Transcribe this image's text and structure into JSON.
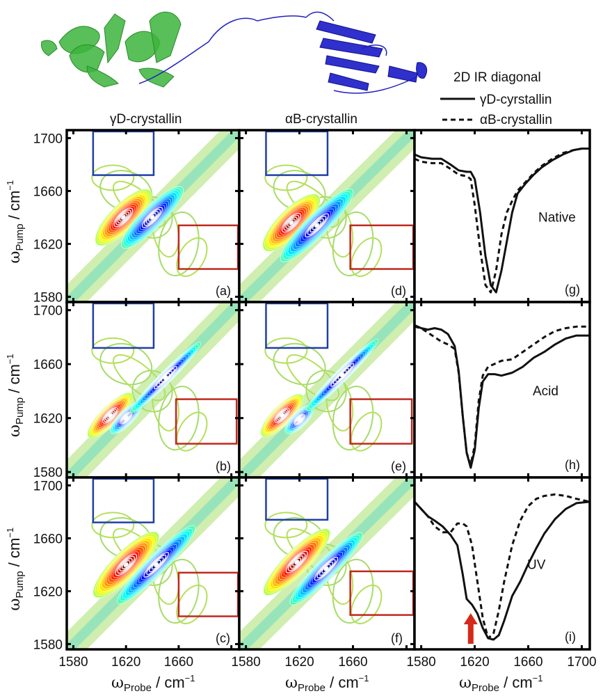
{
  "figure": {
    "proteins": [
      {
        "name": "γD-crystallin",
        "render_color": "#3cb43c"
      },
      {
        "name": "αB-crystallin",
        "render_color": "#1a1ac8"
      }
    ],
    "column_titles": [
      "γD-crystallin",
      "αB-crystallin"
    ],
    "legend": {
      "title": "2D IR diagonal",
      "entries": [
        {
          "label": "γD-cyrstallin",
          "style": "solid"
        },
        {
          "label": "αB-crystallin",
          "style": "dashed"
        }
      ]
    },
    "box_colors": {
      "blue": "#1f3fa6",
      "red": "#c0281e"
    },
    "arrow_color": "#d42a1a"
  },
  "chart_data": [
    {
      "type": "heatmap",
      "panel": "(a)",
      "protein": "γD-crystallin",
      "condition": "Native",
      "xlabel": "ωProbe / cm−1",
      "ylabel": "ωPump / cm−1",
      "xlim": [
        1575,
        1706
      ],
      "ylim": [
        1576,
        1706
      ],
      "xticks": [
        1580,
        1620,
        1660,
        1700
      ],
      "yticks": [
        1580,
        1620,
        1660,
        1700
      ],
      "peaks": [
        {
          "sign": "positive",
          "x": 1618,
          "y": 1640,
          "w": 10,
          "l": 30
        },
        {
          "sign": "negative",
          "x": 1640,
          "y": 1640,
          "w": 8,
          "l": 34
        }
      ],
      "boxes": [
        {
          "color": "blue",
          "x": [
            1595,
            1641
          ],
          "y": [
            1672,
            1705
          ]
        },
        {
          "color": "red",
          "x": [
            1660,
            1705
          ],
          "y": [
            1601,
            1634
          ]
        }
      ]
    },
    {
      "type": "heatmap",
      "panel": "(b)",
      "protein": "γD-crystallin",
      "condition": "Acid",
      "xlabel": "",
      "ylabel": "ωPump / cm−1",
      "xlim": [
        1575,
        1706
      ],
      "ylim": [
        1576,
        1706
      ],
      "xticks": [
        1580,
        1620,
        1660,
        1700
      ],
      "yticks": [
        1580,
        1620,
        1660,
        1700
      ],
      "peaks": [
        {
          "sign": "positive",
          "x": 1608,
          "y": 1622,
          "w": 7,
          "l": 24
        },
        {
          "sign": "negative",
          "x": 1620,
          "y": 1620,
          "w": 5,
          "l": 16
        },
        {
          "sign": "negative",
          "x": 1650,
          "y": 1650,
          "w": 4,
          "l": 40
        }
      ],
      "boxes": [
        {
          "color": "blue",
          "x": [
            1595,
            1641
          ],
          "y": [
            1672,
            1705
          ]
        },
        {
          "color": "red",
          "x": [
            1658,
            1704
          ],
          "y": [
            1601,
            1634
          ]
        }
      ]
    },
    {
      "type": "heatmap",
      "panel": "(c)",
      "protein": "γD-crystallin",
      "condition": "UV",
      "xlabel": "ωProbe / cm−1",
      "ylabel": "ωPump / cm−1",
      "xlim": [
        1575,
        1706
      ],
      "ylim": [
        1576,
        1706
      ],
      "xticks": [
        1580,
        1620,
        1660,
        1700
      ],
      "yticks": [
        1580,
        1620,
        1660,
        1700
      ],
      "peaks": [
        {
          "sign": "positive",
          "x": 1620,
          "y": 1640,
          "w": 10,
          "l": 36
        },
        {
          "sign": "negative",
          "x": 1643,
          "y": 1640,
          "w": 7,
          "l": 44
        }
      ],
      "boxes": [
        {
          "color": "blue",
          "x": [
            1595,
            1641
          ],
          "y": [
            1672,
            1705
          ]
        },
        {
          "color": "red",
          "x": [
            1660,
            1705
          ],
          "y": [
            1601,
            1634
          ]
        }
      ]
    },
    {
      "type": "heatmap",
      "panel": "(d)",
      "protein": "αB-crystallin",
      "condition": "Native",
      "xlabel": "",
      "ylabel": "",
      "xlim": [
        1575,
        1706
      ],
      "ylim": [
        1576,
        1706
      ],
      "xticks": [
        1580,
        1620,
        1660,
        1700
      ],
      "yticks": [
        1580,
        1620,
        1660,
        1700
      ],
      "peaks": [
        {
          "sign": "positive",
          "x": 1614,
          "y": 1636,
          "w": 10,
          "l": 30
        },
        {
          "sign": "negative",
          "x": 1633,
          "y": 1634,
          "w": 8,
          "l": 40
        }
      ],
      "boxes": [
        {
          "color": "blue",
          "x": [
            1595,
            1641
          ],
          "y": [
            1672,
            1705
          ]
        },
        {
          "color": "red",
          "x": [
            1658,
            1705
          ],
          "y": [
            1601,
            1634
          ]
        }
      ]
    },
    {
      "type": "heatmap",
      "panel": "(e)",
      "protein": "αB-crystallin",
      "condition": "Acid",
      "xlabel": "",
      "ylabel": "",
      "xlim": [
        1575,
        1706
      ],
      "ylim": [
        1576,
        1706
      ],
      "xticks": [
        1580,
        1620,
        1660,
        1700
      ],
      "yticks": [
        1580,
        1620,
        1660,
        1700
      ],
      "peaks": [
        {
          "sign": "positive",
          "x": 1607,
          "y": 1622,
          "w": 7,
          "l": 22
        },
        {
          "sign": "negative",
          "x": 1620,
          "y": 1619,
          "w": 5,
          "l": 14
        },
        {
          "sign": "negative",
          "x": 1652,
          "y": 1652,
          "w": 4,
          "l": 40
        }
      ],
      "boxes": [
        {
          "color": "blue",
          "x": [
            1595,
            1641
          ],
          "y": [
            1672,
            1705
          ]
        },
        {
          "color": "red",
          "x": [
            1658,
            1704
          ],
          "y": [
            1601,
            1634
          ]
        }
      ]
    },
    {
      "type": "heatmap",
      "panel": "(f)",
      "protein": "αB-crystallin",
      "condition": "UV",
      "xlabel": "ωProbe / cm−1",
      "ylabel": "",
      "xlim": [
        1575,
        1706
      ],
      "ylim": [
        1576,
        1706
      ],
      "xticks": [
        1580,
        1620,
        1660,
        1700
      ],
      "yticks": [
        1580,
        1620,
        1660,
        1700
      ],
      "peaks": [
        {
          "sign": "positive",
          "x": 1618,
          "y": 1642,
          "w": 9,
          "l": 36
        },
        {
          "sign": "negative",
          "x": 1640,
          "y": 1637,
          "w": 7,
          "l": 40
        }
      ],
      "boxes": [
        {
          "color": "blue",
          "x": [
            1595,
            1641
          ],
          "y": [
            1674,
            1705
          ]
        },
        {
          "color": "red",
          "x": [
            1658,
            1705
          ],
          "y": [
            1602,
            1635
          ]
        }
      ]
    },
    {
      "type": "line",
      "panel": "(g)",
      "condition": "Native",
      "annotation": "Native",
      "xlabel": "",
      "xlim": [
        1575,
        1706
      ],
      "xticks": [
        1580,
        1620,
        1660,
        1700
      ],
      "ylim": [
        -1.0,
        0.05
      ],
      "series": [
        {
          "name": "γD-cyrstallin",
          "style": "solid",
          "x": [
            1575,
            1580,
            1588,
            1595,
            1602,
            1608,
            1614,
            1617,
            1620,
            1624,
            1628,
            1632,
            1636,
            1640,
            1644,
            1648,
            1652,
            1658,
            1664,
            1670,
            1678,
            1686,
            1694,
            1700,
            1706
          ],
          "y": [
            -0.05,
            -0.07,
            -0.08,
            -0.08,
            -0.12,
            -0.16,
            -0.17,
            -0.17,
            -0.22,
            -0.45,
            -0.75,
            -0.95,
            -1.0,
            -0.85,
            -0.65,
            -0.45,
            -0.32,
            -0.25,
            -0.19,
            -0.14,
            -0.09,
            -0.05,
            -0.02,
            -0.01,
            -0.01
          ]
        },
        {
          "name": "αB-crystallin",
          "style": "dashed",
          "x": [
            1575,
            1580,
            1588,
            1595,
            1602,
            1608,
            1614,
            1617,
            1620,
            1624,
            1628,
            1632,
            1636,
            1640,
            1644,
            1648,
            1652,
            1658,
            1664,
            1670,
            1678,
            1686,
            1694,
            1700,
            1706
          ],
          "y": [
            -0.08,
            -0.1,
            -0.11,
            -0.11,
            -0.15,
            -0.19,
            -0.2,
            -0.22,
            -0.4,
            -0.7,
            -0.95,
            -1.0,
            -0.85,
            -0.6,
            -0.45,
            -0.37,
            -0.3,
            -0.24,
            -0.18,
            -0.13,
            -0.08,
            -0.04,
            -0.02,
            -0.01,
            -0.01
          ]
        }
      ]
    },
    {
      "type": "line",
      "panel": "(h)",
      "condition": "Acid",
      "annotation": "Acid",
      "xlabel": "",
      "xlim": [
        1575,
        1706
      ],
      "xticks": [
        1580,
        1620,
        1660,
        1700
      ],
      "ylim": [
        -1.0,
        0.05
      ],
      "series": [
        {
          "name": "γD-cyrstallin",
          "style": "solid",
          "x": [
            1575,
            1580,
            1585,
            1590,
            1595,
            1600,
            1605,
            1608,
            1611,
            1614,
            1617,
            1620,
            1623,
            1626,
            1630,
            1635,
            1640,
            1648,
            1656,
            1664,
            1672,
            1680,
            1688,
            1696,
            1706
          ],
          "y": [
            -0.04,
            -0.06,
            -0.07,
            -0.06,
            -0.07,
            -0.1,
            -0.18,
            -0.35,
            -0.65,
            -0.9,
            -1.0,
            -0.88,
            -0.6,
            -0.42,
            -0.37,
            -0.37,
            -0.38,
            -0.36,
            -0.32,
            -0.26,
            -0.22,
            -0.17,
            -0.13,
            -0.11,
            -0.11
          ]
        },
        {
          "name": "αB-crystallin",
          "style": "dashed",
          "x": [
            1575,
            1580,
            1585,
            1590,
            1595,
            1600,
            1605,
            1608,
            1611,
            1614,
            1617,
            1620,
            1623,
            1626,
            1630,
            1635,
            1640,
            1648,
            1656,
            1664,
            1672,
            1680,
            1688,
            1696,
            1706
          ],
          "y": [
            -0.05,
            -0.06,
            -0.09,
            -0.12,
            -0.15,
            -0.17,
            -0.2,
            -0.36,
            -0.65,
            -0.9,
            -0.98,
            -0.85,
            -0.55,
            -0.38,
            -0.32,
            -0.3,
            -0.28,
            -0.27,
            -0.22,
            -0.17,
            -0.12,
            -0.08,
            -0.06,
            -0.05,
            -0.05
          ]
        }
      ]
    },
    {
      "type": "line",
      "panel": "(i)",
      "condition": "UV",
      "annotation": "UV",
      "xlabel": "ωProbe / cm−1",
      "xlim": [
        1575,
        1706
      ],
      "xticks": [
        1580,
        1620,
        1660,
        1700
      ],
      "ylim": [
        -1.0,
        0.05
      ],
      "series": [
        {
          "name": "γD-cyrstallin",
          "style": "solid",
          "x": [
            1575,
            1580,
            1585,
            1590,
            1596,
            1602,
            1607,
            1611,
            1614,
            1618,
            1622,
            1626,
            1630,
            1634,
            1638,
            1642,
            1648,
            1654,
            1660,
            1666,
            1672,
            1680,
            1688,
            1696,
            1706
          ],
          "y": [
            -0.05,
            -0.1,
            -0.15,
            -0.18,
            -0.22,
            -0.28,
            -0.35,
            -0.55,
            -0.72,
            -0.76,
            -0.82,
            -0.92,
            -0.99,
            -1.0,
            -0.97,
            -0.87,
            -0.7,
            -0.6,
            -0.48,
            -0.37,
            -0.27,
            -0.17,
            -0.1,
            -0.06,
            -0.05
          ]
        },
        {
          "name": "αB-crystallin",
          "style": "dashed",
          "x": [
            1575,
            1580,
            1585,
            1590,
            1596,
            1602,
            1607,
            1611,
            1614,
            1618,
            1622,
            1626,
            1630,
            1634,
            1638,
            1642,
            1648,
            1654,
            1660,
            1666,
            1672,
            1680,
            1688,
            1696,
            1706
          ],
          "y": [
            -0.05,
            -0.1,
            -0.15,
            -0.22,
            -0.26,
            -0.26,
            -0.2,
            -0.2,
            -0.22,
            -0.35,
            -0.6,
            -0.85,
            -0.99,
            -0.96,
            -0.8,
            -0.6,
            -0.35,
            -0.18,
            -0.08,
            -0.03,
            -0.01,
            0.0,
            -0.01,
            -0.03,
            -0.05
          ]
        }
      ],
      "arrow_at_x": 1617
    }
  ],
  "labels": {
    "xlabel_main": "ω",
    "xlabel_sub": "Probe",
    "xlabel_unit": " / cm",
    "ylabel_main": "ω",
    "ylabel_sub": "Pump",
    "ylabel_unit": " / cm",
    "unit_exp": "−1",
    "tick_labels": [
      "1580",
      "1620",
      "1660",
      "1700"
    ]
  }
}
